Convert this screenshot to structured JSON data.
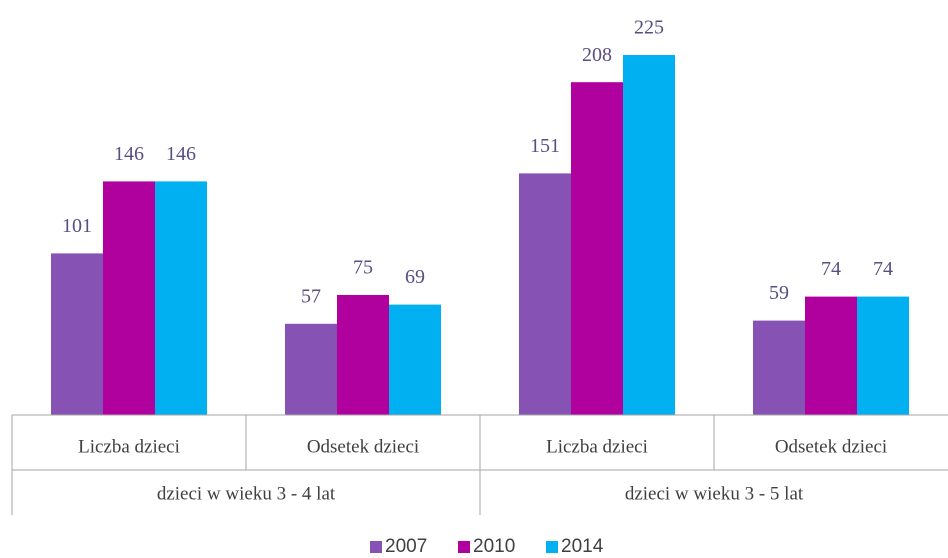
{
  "chart_data": {
    "type": "bar",
    "categories": [
      "Liczba dzieci",
      "Odsetek dzieci",
      "Liczba dzieci",
      "Odsetek dzieci"
    ],
    "groups": [
      "dzieci w wieku 3 - 4 lat",
      "dzieci w wieku 3 - 5 lat"
    ],
    "series": [
      {
        "name": "2007",
        "color": "#8652b4",
        "values": [
          101,
          57,
          151,
          59
        ]
      },
      {
        "name": "2010",
        "color": "#b0009e",
        "values": [
          146,
          75,
          208,
          74
        ]
      },
      {
        "name": "2014",
        "color": "#00b0f0",
        "values": [
          146,
          69,
          225,
          74
        ]
      }
    ],
    "legend": "bottom"
  }
}
